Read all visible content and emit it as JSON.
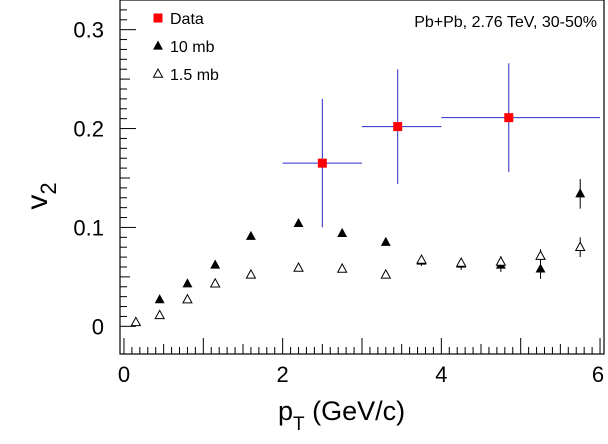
{
  "chart_data": {
    "type": "scatter",
    "annotation": "Pb+Pb, 2.76 TeV, 30-50%",
    "xlabel": {
      "main": "p",
      "sub": "T",
      "unit": " (GeV/c)"
    },
    "ylabel": {
      "main": "v",
      "sub": "2"
    },
    "xlim": [
      -0.05,
      6.05
    ],
    "ylim": [
      -0.028,
      0.33
    ],
    "x_ticks": [
      "0",
      "2",
      "4",
      "6"
    ],
    "y_ticks": [
      "0",
      "0.1",
      "0.2",
      "0.3"
    ],
    "legend_position": "top-left",
    "series": [
      {
        "name": "Data",
        "marker": "filled-square",
        "color": "#ff0000",
        "errorbar_color": "#2a2acc",
        "points": [
          {
            "x": 2.5,
            "y": 0.165,
            "xerr_low": 0.5,
            "xerr_high": 0.5,
            "yerr_low": 0.065,
            "yerr_high": 0.065
          },
          {
            "x": 3.45,
            "y": 0.202,
            "xerr_low": 0.45,
            "xerr_high": 0.55,
            "yerr_low": 0.058,
            "yerr_high": 0.058
          },
          {
            "x": 4.85,
            "y": 0.211,
            "xerr_low": 0.85,
            "xerr_high": 1.15,
            "yerr_low": 0.055,
            "yerr_high": 0.055
          }
        ]
      },
      {
        "name": "10 mb",
        "marker": "filled-triangle",
        "color": "#000000",
        "points": [
          {
            "x": 0.45,
            "y": 0.027
          },
          {
            "x": 0.8,
            "y": 0.043
          },
          {
            "x": 1.15,
            "y": 0.062
          },
          {
            "x": 1.6,
            "y": 0.091
          },
          {
            "x": 2.2,
            "y": 0.104
          },
          {
            "x": 2.75,
            "y": 0.094
          },
          {
            "x": 3.3,
            "y": 0.085
          },
          {
            "x": 3.75,
            "y": 0.066,
            "yerr": 0.005
          },
          {
            "x": 4.25,
            "y": 0.063,
            "yerr": 0.006
          },
          {
            "x": 4.75,
            "y": 0.062,
            "yerr": 0.007
          },
          {
            "x": 5.25,
            "y": 0.058,
            "yerr": 0.01
          },
          {
            "x": 5.75,
            "y": 0.134,
            "yerr": 0.015
          }
        ]
      },
      {
        "name": "1.5 mb",
        "marker": "open-triangle",
        "color": "#000000",
        "points": [
          {
            "x": 0.15,
            "y": 0.004
          },
          {
            "x": 0.45,
            "y": 0.011
          },
          {
            "x": 0.8,
            "y": 0.027
          },
          {
            "x": 1.15,
            "y": 0.043
          },
          {
            "x": 1.6,
            "y": 0.052
          },
          {
            "x": 2.2,
            "y": 0.059
          },
          {
            "x": 2.75,
            "y": 0.058
          },
          {
            "x": 3.3,
            "y": 0.052
          },
          {
            "x": 3.75,
            "y": 0.067,
            "yerr": 0.005
          },
          {
            "x": 4.25,
            "y": 0.064,
            "yerr": 0.005
          },
          {
            "x": 4.75,
            "y": 0.065,
            "yerr": 0.006
          },
          {
            "x": 5.25,
            "y": 0.071,
            "yerr": 0.007
          },
          {
            "x": 5.75,
            "y": 0.08,
            "yerr": 0.01
          }
        ]
      }
    ]
  }
}
